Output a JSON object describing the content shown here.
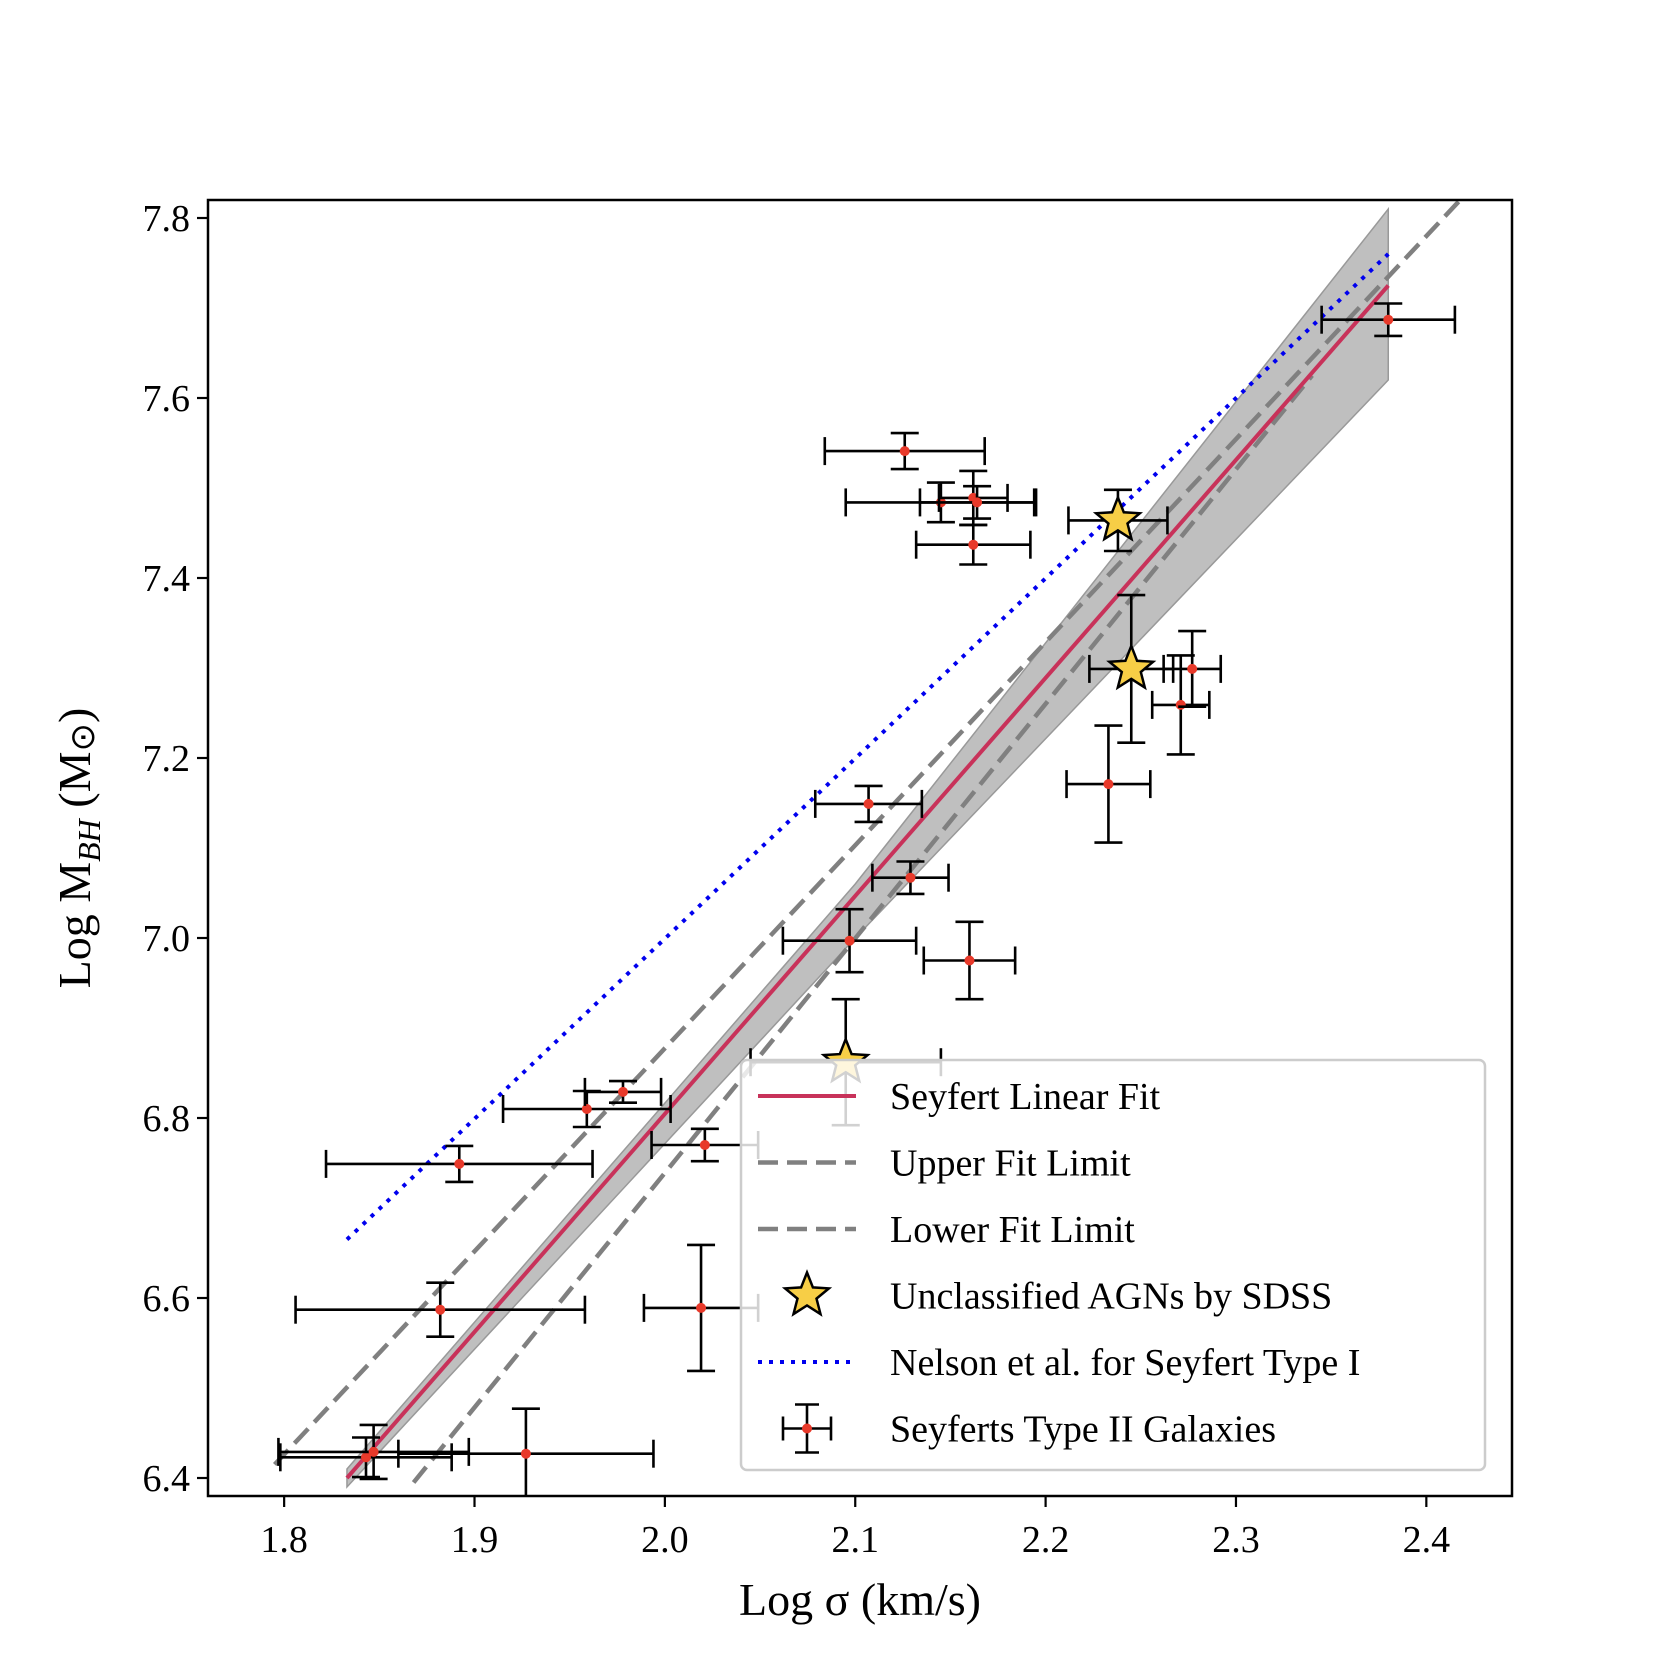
{
  "chart_data": {
    "type": "scatter",
    "xlabel": "Log σ (km/s)",
    "ylabel": {
      "prefix": "Log M",
      "sub": "BH",
      "suffix": " (M",
      "sun": "⊙",
      "close": ")"
    },
    "xlim": [
      1.76,
      2.445
    ],
    "ylim": [
      6.38,
      7.82
    ],
    "xticks": [
      "1.8",
      "1.9",
      "2.0",
      "2.1",
      "2.2",
      "2.3",
      "2.4"
    ],
    "yticks": [
      "6.4",
      "6.6",
      "6.8",
      "7.0",
      "7.2",
      "7.4",
      "7.6",
      "7.8"
    ],
    "grid": false,
    "legend_position": "lower-right",
    "legend": [
      {
        "key": "fit",
        "label": "Seyfert Linear Fit"
      },
      {
        "key": "upper",
        "label": "Upper Fit Limit"
      },
      {
        "key": "lower",
        "label": "Lower Fit Limit"
      },
      {
        "key": "agn",
        "label": "Unclassified AGNs by SDSS"
      },
      {
        "key": "nelson",
        "label": "Nelson et al. for Seyfert Type I"
      },
      {
        "key": "seyfert2",
        "label": "Seyferts Type II Galaxies"
      }
    ],
    "colors": {
      "fit": "#c8325a",
      "limits": "#808080",
      "nelson": "#0000ee",
      "marker": "#e8392a",
      "star": "#f7ce46",
      "band": "#a9a9a9"
    },
    "fit_line": {
      "x": [
        1.833,
        2.38
      ],
      "y": [
        6.4,
        7.725
      ]
    },
    "upper_limit": {
      "x": [
        1.795,
        2.42
      ],
      "y": [
        6.415,
        7.825
      ]
    },
    "lower_limit": {
      "x": [
        1.868,
        2.34
      ],
      "y": [
        6.395,
        7.625
      ]
    },
    "nelson_line": {
      "x": [
        1.833,
        2.38
      ],
      "y": [
        6.665,
        7.76
      ]
    },
    "confidence_band": {
      "upper": [
        [
          1.833,
          6.41
        ],
        [
          2.1,
          7.06
        ],
        [
          2.38,
          7.81
        ]
      ],
      "lower": [
        [
          1.833,
          6.39
        ],
        [
          2.1,
          7.0
        ],
        [
          2.38,
          7.62
        ]
      ]
    },
    "seyfert2": [
      {
        "x": 1.843,
        "y": 6.423,
        "xerr": 0.045,
        "yerr": 0.022
      },
      {
        "x": 1.847,
        "y": 6.429,
        "xerr": 0.05,
        "yerr": 0.03
      },
      {
        "x": 1.927,
        "y": 6.427,
        "xerr": 0.067,
        "yerr": 0.05
      },
      {
        "x": 1.882,
        "y": 6.587,
        "xerr": 0.076,
        "yerr": 0.03
      },
      {
        "x": 2.019,
        "y": 6.589,
        "xerr": 0.03,
        "yerr": 0.07
      },
      {
        "x": 1.892,
        "y": 6.749,
        "xerr": 0.07,
        "yerr": 0.02
      },
      {
        "x": 2.021,
        "y": 6.77,
        "xerr": 0.028,
        "yerr": 0.018
      },
      {
        "x": 1.959,
        "y": 6.81,
        "xerr": 0.044,
        "yerr": 0.02
      },
      {
        "x": 1.978,
        "y": 6.829,
        "xerr": 0.02,
        "yerr": 0.012
      },
      {
        "x": 2.097,
        "y": 6.997,
        "xerr": 0.035,
        "yerr": 0.035
      },
      {
        "x": 2.16,
        "y": 6.975,
        "xerr": 0.024,
        "yerr": 0.043
      },
      {
        "x": 2.129,
        "y": 7.067,
        "xerr": 0.02,
        "yerr": 0.018
      },
      {
        "x": 2.107,
        "y": 7.149,
        "xerr": 0.028,
        "yerr": 0.02
      },
      {
        "x": 2.233,
        "y": 7.171,
        "xerr": 0.022,
        "yerr": 0.065
      },
      {
        "x": 2.271,
        "y": 7.259,
        "xerr": 0.015,
        "yerr": 0.055
      },
      {
        "x": 2.277,
        "y": 7.299,
        "xerr": 0.015,
        "yerr": 0.042
      },
      {
        "x": 2.126,
        "y": 7.541,
        "xerr": 0.042,
        "yerr": 0.02
      },
      {
        "x": 2.145,
        "y": 7.484,
        "xerr": 0.05,
        "yerr": 0.022
      },
      {
        "x": 2.162,
        "y": 7.489,
        "xerr": 0.018,
        "yerr": 0.03
      },
      {
        "x": 2.164,
        "y": 7.484,
        "xerr": 0.03,
        "yerr": 0.018
      },
      {
        "x": 2.162,
        "y": 7.437,
        "xerr": 0.03,
        "yerr": 0.022
      },
      {
        "x": 2.38,
        "y": 7.687,
        "xerr": 0.035,
        "yerr": 0.018
      }
    ],
    "agn": [
      {
        "x": 2.095,
        "y": 6.862,
        "xerr": 0.05,
        "yerr": 0.07
      },
      {
        "x": 2.238,
        "y": 7.464,
        "xerr": 0.026,
        "yerr": 0.034
      },
      {
        "x": 2.245,
        "y": 7.299,
        "xerr": 0.022,
        "yerr": 0.082
      }
    ]
  }
}
